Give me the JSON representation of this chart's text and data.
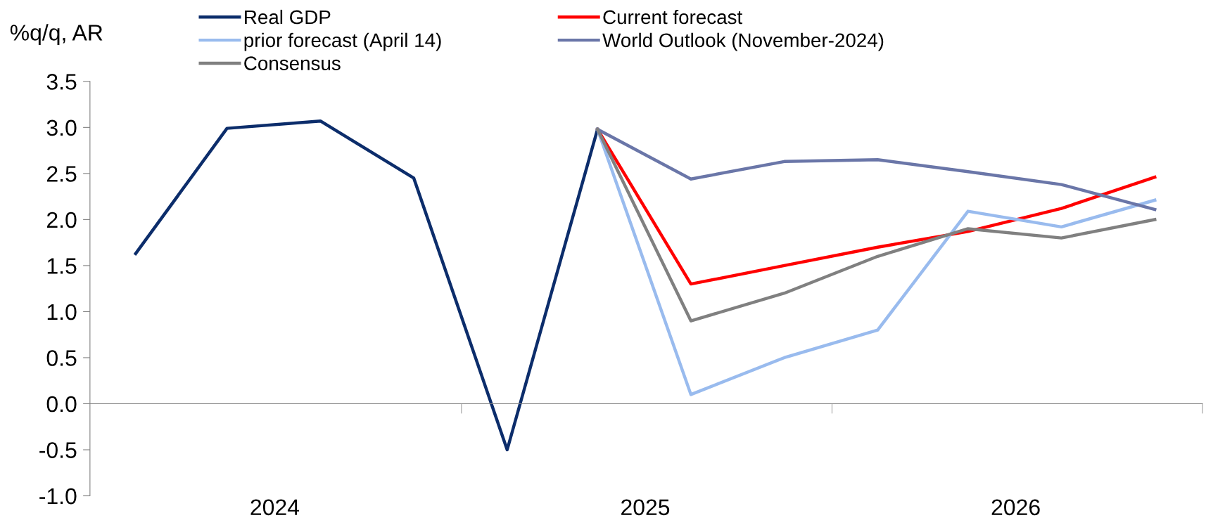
{
  "chart_data": {
    "type": "line",
    "ylabel": "%q/q, AR",
    "x": [
      "2024-02-15",
      "2024-05-15",
      "2024-08-15",
      "2024-11-15",
      "2025-02-15",
      "2025-05-15",
      "2025-08-15",
      "2025-11-15",
      "2026-02-15",
      "2026-05-15",
      "2026-08-15",
      "2026-11-15"
    ],
    "series": [
      {
        "name": "Real GDP",
        "color": "#0c2d6b",
        "values": [
          1.63,
          2.99,
          3.07,
          2.45,
          -0.5,
          2.98,
          null,
          null,
          null,
          null,
          null,
          null
        ]
      },
      {
        "name": "Current forecast",
        "color": "#ff0000",
        "values": [
          null,
          null,
          null,
          null,
          null,
          2.98,
          1.3,
          1.5,
          1.7,
          1.87,
          2.12,
          2.46
        ]
      },
      {
        "name": "prior forecast (April 14)",
        "color": "#99bbee",
        "values": [
          null,
          null,
          null,
          null,
          null,
          2.98,
          0.1,
          0.5,
          0.8,
          2.09,
          1.92,
          2.21
        ]
      },
      {
        "name": "World Outlook (November-2024)",
        "color": "#6a76a8",
        "values": [
          null,
          null,
          null,
          null,
          null,
          2.98,
          2.44,
          2.63,
          2.65,
          2.52,
          2.38,
          2.11
        ]
      },
      {
        "name": "Consensus",
        "color": "#808080",
        "values": [
          null,
          null,
          null,
          null,
          null,
          2.98,
          0.9,
          1.2,
          1.6,
          1.9,
          1.8,
          2.0
        ]
      }
    ],
    "xlim": [
      "2024-01-01",
      "2027-01-01"
    ],
    "xticks": [
      {
        "value": "2024-07-01",
        "label": "2024"
      },
      {
        "value": "2025-01-01",
        "label": null
      },
      {
        "value": "2025-07-01",
        "label": "2025"
      },
      {
        "value": "2026-01-01",
        "label": null
      },
      {
        "value": "2026-07-01",
        "label": "2026"
      },
      {
        "value": "2027-01-01",
        "label": null
      }
    ],
    "ylim": [
      -1.0,
      3.5
    ],
    "yticks": [
      {
        "value": -1.0,
        "label": "-1.0"
      },
      {
        "value": -0.5,
        "label": "-0.5"
      },
      {
        "value": 0.0,
        "label": "0.0"
      },
      {
        "value": 0.5,
        "label": "0.5"
      },
      {
        "value": 1.0,
        "label": "1.0"
      },
      {
        "value": 1.5,
        "label": "1.5"
      },
      {
        "value": 2.0,
        "label": "2.0"
      },
      {
        "value": 2.5,
        "label": "2.5"
      },
      {
        "value": 3.0,
        "label": "3.0"
      },
      {
        "value": 3.5,
        "label": "3.5"
      }
    ],
    "legend": "top",
    "marker": "none",
    "line_style": "solid"
  }
}
